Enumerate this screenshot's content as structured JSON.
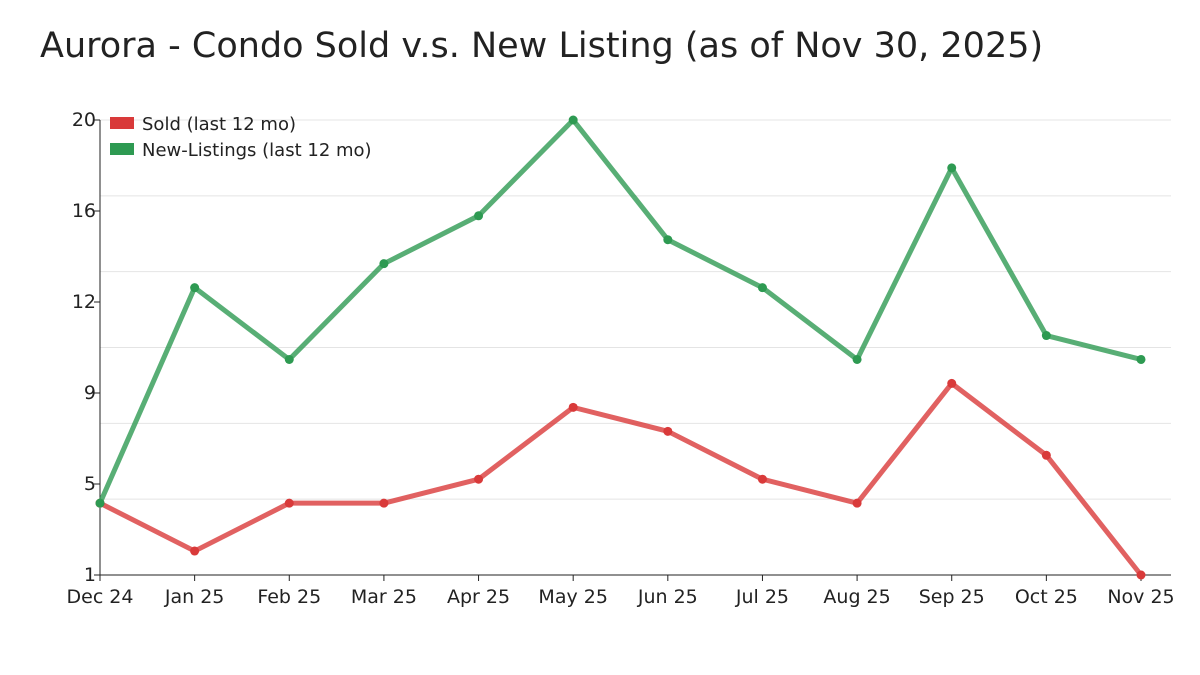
{
  "chart_data": {
    "type": "line",
    "title": "Aurora - Condo Sold v.s. New Listing (as of Nov 30, 2025)",
    "xlabel": "",
    "ylabel": "",
    "categories": [
      "Dec 24",
      "Jan 25",
      "Feb 25",
      "Mar 25",
      "Apr 25",
      "May 25",
      "Jun 25",
      "Jul 25",
      "Aug 25",
      "Sep 25",
      "Oct 25",
      "Nov 25"
    ],
    "ylim": [
      1,
      20
    ],
    "yticks": [
      "1",
      "5",
      "9",
      "12",
      "16",
      "20"
    ],
    "grid": true,
    "legend_position": "top-left",
    "series": [
      {
        "name": "Sold (last 12 mo)",
        "color": "#d93a3a",
        "values": [
          4,
          2,
          4,
          4,
          5,
          8,
          7,
          5,
          4,
          9,
          6,
          1
        ]
      },
      {
        "name": "New-Listings (last 12 mo)",
        "color": "#2e9a52",
        "values": [
          4,
          13,
          10,
          14,
          16,
          20,
          15,
          13,
          10,
          18,
          11,
          10
        ]
      }
    ]
  }
}
